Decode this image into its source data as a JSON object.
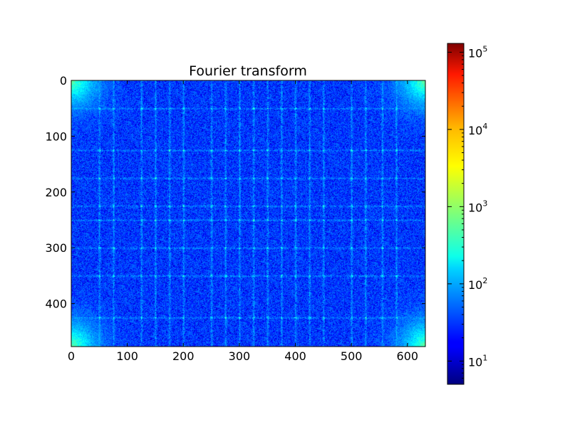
{
  "chart_data": [
    {
      "type": "heatmap",
      "title": "Fourier transform",
      "xlabel": "",
      "ylabel": "",
      "xlim": [
        0,
        632
      ],
      "ylim": [
        0,
        477
      ],
      "y_inverted": true,
      "x_ticks": [
        0,
        100,
        200,
        300,
        400,
        500,
        600
      ],
      "y_ticks": [
        0,
        100,
        200,
        300,
        400
      ],
      "grid": false,
      "colormap": "jet",
      "colorbar": {
        "scale": "log",
        "range": [
          5,
          130000
        ],
        "tick_labels": [
          {
            "base": "10",
            "exp": "1",
            "value": 10
          },
          {
            "base": "10",
            "exp": "2",
            "value": 100
          },
          {
            "base": "10",
            "exp": "3",
            "value": 1000
          },
          {
            "base": "10",
            "exp": "4",
            "value": 10000
          },
          {
            "base": "10",
            "exp": "5",
            "value": 100000
          }
        ]
      },
      "pattern": {
        "background_level": 30,
        "peak_columns": [
          50,
          75,
          125,
          150,
          175,
          200,
          250,
          275,
          300,
          325,
          350,
          375,
          400,
          425,
          450,
          500,
          525,
          555,
          580
        ],
        "peak_rows": [
          50,
          125,
          175,
          225,
          250,
          300,
          350,
          425
        ],
        "corner_level": 600
      }
    }
  ],
  "colors": {
    "background": "#ffffff",
    "axes_edge": "#000000"
  }
}
